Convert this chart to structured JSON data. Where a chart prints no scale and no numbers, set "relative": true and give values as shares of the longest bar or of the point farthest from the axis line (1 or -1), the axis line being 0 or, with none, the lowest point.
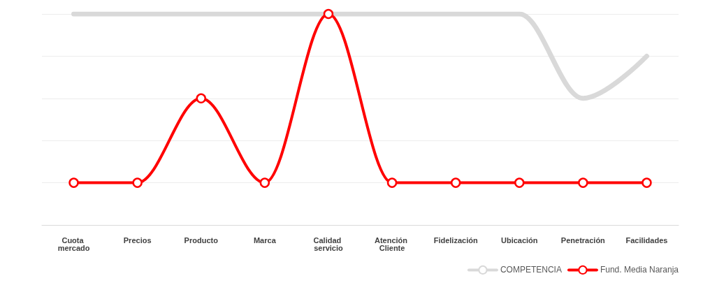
{
  "chart_data": {
    "type": "line",
    "relative": true,
    "grid": "y",
    "legend": "bottom right",
    "line_style": "solid",
    "categories": [
      "Cuota mercado",
      "Precios",
      "Producto",
      "Marca",
      "Calidad servicio",
      "Atención Cliente",
      "Fidelización",
      "Ubicación",
      "Penetración",
      "Facilidades"
    ],
    "series": [
      {
        "name": "COMPETENCIA",
        "color": "#d9d9d9",
        "marker": "none",
        "values": [
          1,
          1,
          1,
          1,
          1,
          1,
          1,
          1,
          0.6,
          0.8
        ]
      },
      {
        "name": "Fund. Media Naranja",
        "color": "#ff0000",
        "marker": "circle",
        "values": [
          0.2,
          0.2,
          0.6,
          0.2,
          1,
          0.2,
          0.2,
          0.2,
          0.2,
          0.2
        ]
      }
    ]
  }
}
